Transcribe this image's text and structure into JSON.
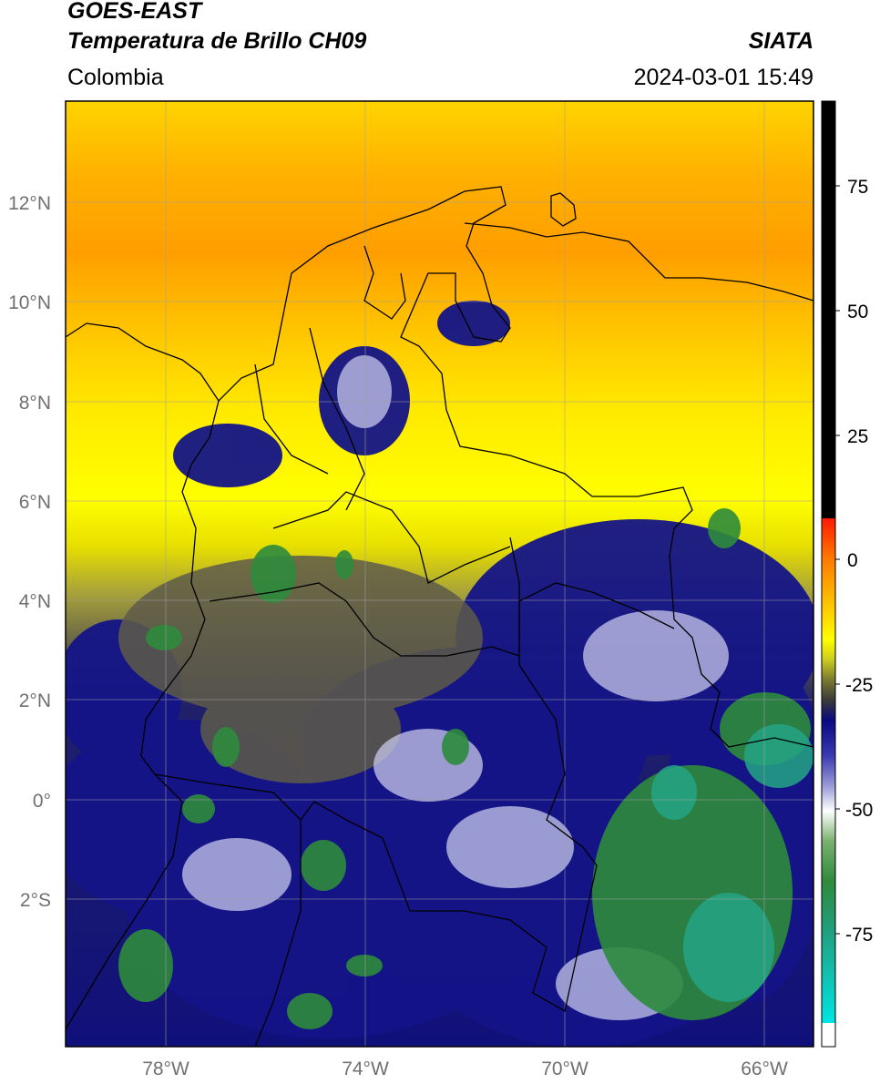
{
  "header": {
    "line1": "GOES-EAST",
    "line2": "Temperatura de Brillo CH09",
    "brand": "SIATA",
    "region": "Colombia",
    "timestamp": "2024-03-01 15:49"
  },
  "map": {
    "lon_range": [
      -80,
      -65
    ],
    "lat_range": [
      -5,
      14
    ],
    "lat_ticks": [
      "12°N",
      "10°N",
      "8°N",
      "6°N",
      "4°N",
      "2°N",
      "0°",
      "2°S"
    ],
    "lon_ticks": [
      "78°W",
      "74°W",
      "70°W",
      "66°W"
    ],
    "grid": true
  },
  "colorbar": {
    "tick_labels": [
      "75",
      "50",
      "25",
      "0",
      "-25",
      "-50",
      "-75"
    ],
    "colors": {
      "white": "#ffffff",
      "cyan": "#00e5e5",
      "green": "#2e8b3c",
      "navy": "#0a0a80",
      "olive": "#7a7a30",
      "yellow": "#ffff00",
      "orange": "#ff8c00",
      "red": "#ff1a00",
      "black": "#000000"
    }
  }
}
